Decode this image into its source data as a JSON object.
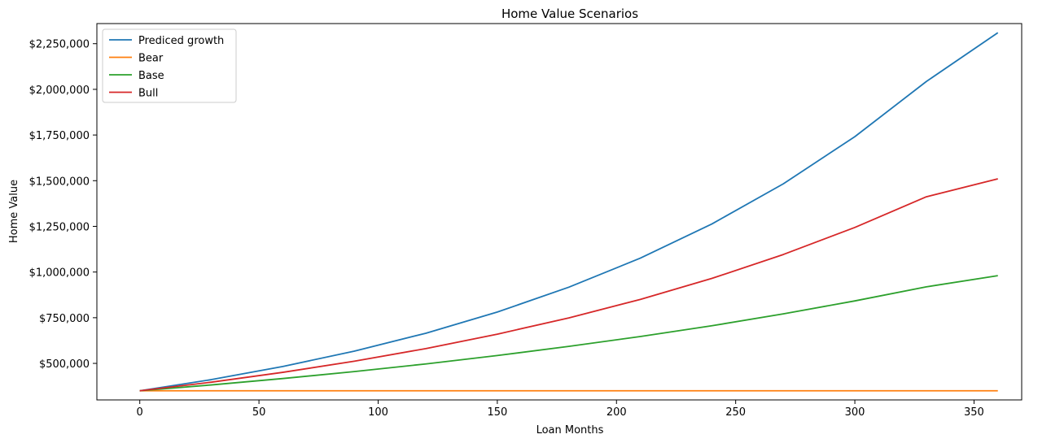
{
  "chart_data": {
    "type": "line",
    "title": "Home Value Scenarios",
    "xlabel": "Loan Months",
    "ylabel": "Home Value",
    "xlim": [
      -18,
      370
    ],
    "ylim": [
      300000,
      2360000
    ],
    "x_ticks": [
      0,
      50,
      100,
      150,
      200,
      250,
      300,
      350
    ],
    "y_ticks": [
      500000,
      750000,
      1000000,
      1250000,
      1500000,
      1750000,
      2000000,
      2250000
    ],
    "y_tick_labels": [
      "$500,000",
      "$750,000",
      "$1,000,000",
      "$1,250,000",
      "$1,500,000",
      "$1,750,000",
      "$2,000,000",
      "$2,250,000"
    ],
    "x_tick_labels": [
      "0",
      "50",
      "100",
      "150",
      "200",
      "250",
      "300",
      "350"
    ],
    "legend_position": "top-left",
    "grid": false,
    "x": [
      0,
      30,
      60,
      90,
      120,
      150,
      180,
      210,
      240,
      270,
      300,
      330,
      360
    ],
    "series": [
      {
        "name": "Prediced growth",
        "color": "#1f77b4",
        "values": [
          350000,
          411000,
          483000,
          567000,
          665000,
          781000,
          917000,
          1076000,
          1263000,
          1483000,
          1741000,
          2043000,
          2310000
        ]
      },
      {
        "name": "Bear",
        "color": "#ff7f0e",
        "values": [
          350000,
          350000,
          350000,
          350000,
          350000,
          350000,
          350000,
          350000,
          350000,
          350000,
          350000,
          350000,
          350000
        ]
      },
      {
        "name": "Base",
        "color": "#2ca02c",
        "values": [
          350000,
          382000,
          417000,
          455000,
          497000,
          543000,
          593000,
          647000,
          706000,
          771000,
          842000,
          919000,
          980000
        ]
      },
      {
        "name": "Bull",
        "color": "#d62728",
        "values": [
          350000,
          397000,
          451000,
          512000,
          581000,
          660000,
          749000,
          850000,
          965000,
          1096000,
          1244000,
          1412000,
          1510000
        ]
      }
    ]
  }
}
